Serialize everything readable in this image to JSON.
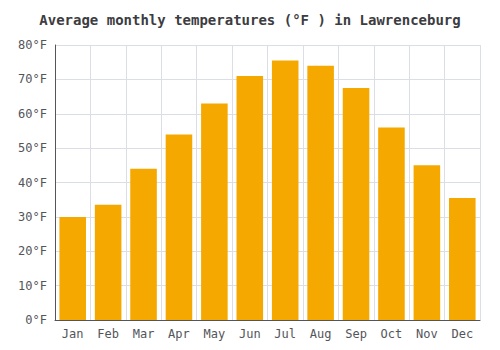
{
  "chart_data": {
    "type": "bar",
    "title": "Average monthly temperatures (°F ) in Lawrenceburg",
    "categories": [
      "Jan",
      "Feb",
      "Mar",
      "Apr",
      "May",
      "Jun",
      "Jul",
      "Aug",
      "Sep",
      "Oct",
      "Nov",
      "Dec"
    ],
    "values": [
      30,
      33.5,
      44,
      54,
      63,
      71,
      75.5,
      74,
      67.5,
      56,
      45,
      35.5
    ],
    "color": "#F5A800",
    "ylim": [
      0,
      80
    ],
    "yticks": [
      {
        "value": 0,
        "label": "0°F"
      },
      {
        "value": 10,
        "label": "10°F"
      },
      {
        "value": 20,
        "label": "20°F"
      },
      {
        "value": 30,
        "label": "30°F"
      },
      {
        "value": 40,
        "label": "40°F"
      },
      {
        "value": 50,
        "label": "50°F"
      },
      {
        "value": 60,
        "label": "60°F"
      },
      {
        "value": 70,
        "label": "70°F"
      },
      {
        "value": 80,
        "label": "80°F"
      }
    ],
    "grid": true
  }
}
